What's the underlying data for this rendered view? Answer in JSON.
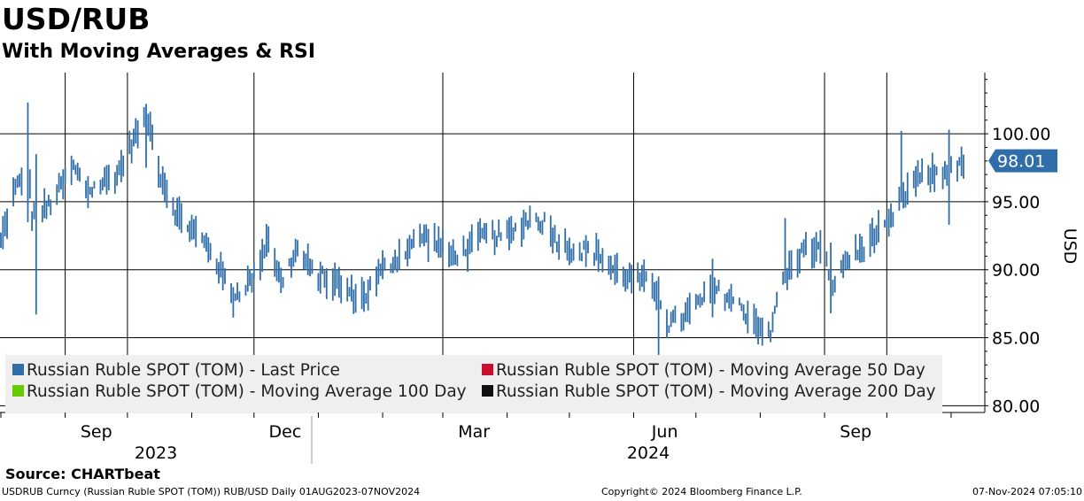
{
  "header": {
    "title": "USD/RUB",
    "subtitle": "With Moving Averages & RSI"
  },
  "footer": {
    "source": "Source: CHARTbeat",
    "left": "USDRUB Curncy (Russian Ruble SPOT (TOM)) RUB/USD  Daily 01AUG2023-07NOV2024",
    "middle": "Copyright© 2024 Bloomberg Finance L.P.",
    "right": "07-Nov-2024 07:05:10"
  },
  "chart_data": {
    "type": "bar",
    "ylabel": "USD",
    "y_tick_labels": [
      "100.00",
      "95.00",
      "90.00",
      "85.00",
      "80.00"
    ],
    "y_ticks": [
      100,
      95,
      90,
      85,
      80
    ],
    "ylim": [
      79.5,
      104.5
    ],
    "x_tick_labels": [
      "Sep",
      "Dec",
      "Mar",
      "Jun",
      "Sep"
    ],
    "x_year_labels": [
      "2023",
      "2024"
    ],
    "grid": true,
    "legend_position": "bottom",
    "last_value_label": "98.01",
    "colors": {
      "last_price": "#2f6ea8",
      "ma50": "#c8102e",
      "ma100": "#66cc00",
      "ma200": "#111111",
      "grid": "#000000",
      "legend_bg": "#efefef"
    },
    "series": [
      {
        "name": "Russian Ruble SPOT (TOM) - Last Price",
        "color": "#2f6ea8"
      },
      {
        "name": "Russian Ruble SPOT (TOM) - Moving Average 50 Day",
        "color": "#c8102e"
      },
      {
        "name": "Russian Ruble SPOT (TOM) - Moving Average 100 Day",
        "color": "#66cc00"
      },
      {
        "name": "Russian Ruble SPOT (TOM) - Moving Average 200 Day",
        "color": "#111111"
      }
    ],
    "price_path": [
      [
        "2023-08-01",
        92.0
      ],
      [
        "2023-08-07",
        95.5
      ],
      [
        "2023-08-14",
        97.8
      ],
      [
        "2023-08-16",
        94.0
      ],
      [
        "2023-08-23",
        94.5
      ],
      [
        "2023-09-05",
        97.5
      ],
      [
        "2023-09-12",
        95.8
      ],
      [
        "2023-09-26",
        97.0
      ],
      [
        "2023-10-06",
        100.2
      ],
      [
        "2023-10-11",
        101.0
      ],
      [
        "2023-10-17",
        97.0
      ],
      [
        "2023-10-25",
        94.0
      ],
      [
        "2023-11-02",
        92.8
      ],
      [
        "2023-11-10",
        91.5
      ],
      [
        "2023-11-17",
        89.2
      ],
      [
        "2023-11-21",
        88.0
      ],
      [
        "2023-12-01",
        89.5
      ],
      [
        "2023-12-08",
        92.5
      ],
      [
        "2023-12-14",
        89.0
      ],
      [
        "2023-12-22",
        91.5
      ],
      [
        "2023-12-29",
        89.8
      ],
      [
        "2024-01-10",
        89.0
      ],
      [
        "2024-01-17",
        88.2
      ],
      [
        "2024-01-23",
        88.0
      ],
      [
        "2024-02-01",
        90.0
      ],
      [
        "2024-02-09",
        91.0
      ],
      [
        "2024-02-20",
        92.5
      ],
      [
        "2024-02-27",
        92.0
      ],
      [
        "2024-03-05",
        91.0
      ],
      [
        "2024-03-13",
        91.5
      ],
      [
        "2024-03-20",
        92.5
      ],
      [
        "2024-04-02",
        92.5
      ],
      [
        "2024-04-12",
        93.8
      ],
      [
        "2024-04-19",
        93.5
      ],
      [
        "2024-04-26",
        92.0
      ],
      [
        "2024-05-03",
        91.5
      ],
      [
        "2024-05-15",
        91.2
      ],
      [
        "2024-05-22",
        90.0
      ],
      [
        "2024-05-29",
        89.5
      ],
      [
        "2024-06-05",
        89.2
      ],
      [
        "2024-06-12",
        88.5
      ],
      [
        "2024-06-18",
        86.0
      ],
      [
        "2024-06-25",
        86.5
      ],
      [
        "2024-07-02",
        87.5
      ],
      [
        "2024-07-10",
        88.5
      ],
      [
        "2024-07-17",
        88.0
      ],
      [
        "2024-07-24",
        87.0
      ],
      [
        "2024-07-31",
        86.0
      ],
      [
        "2024-08-06",
        85.0
      ],
      [
        "2024-08-09",
        88.0
      ],
      [
        "2024-08-15",
        90.0
      ],
      [
        "2024-08-22",
        91.5
      ],
      [
        "2024-08-29",
        91.5
      ],
      [
        "2024-09-02",
        90.5
      ],
      [
        "2024-09-06",
        88.5
      ],
      [
        "2024-09-10",
        90.5
      ],
      [
        "2024-09-19",
        91.5
      ],
      [
        "2024-09-25",
        92.5
      ],
      [
        "2024-10-01",
        93.0
      ],
      [
        "2024-10-08",
        95.0
      ],
      [
        "2024-10-14",
        96.5
      ],
      [
        "2024-10-21",
        97.0
      ],
      [
        "2024-10-28",
        97.0
      ],
      [
        "2024-11-01",
        97.8
      ],
      [
        "2024-11-05",
        97.5
      ],
      [
        "2024-11-07",
        98.01
      ]
    ],
    "spikes": [
      {
        "date": "2023-08-14",
        "high": 102.3,
        "low": 93.5
      },
      {
        "date": "2023-08-18",
        "high": 98.5,
        "low": 86.7
      },
      {
        "date": "2023-10-10",
        "high": 102.2,
        "low": 97.5
      },
      {
        "date": "2024-06-13",
        "high": 89.5,
        "low": 83.0
      },
      {
        "date": "2024-07-09",
        "high": 90.8,
        "low": 86.5
      },
      {
        "date": "2024-08-13",
        "high": 93.8,
        "low": 89.0
      },
      {
        "date": "2024-09-04",
        "high": 92.0,
        "low": 86.8
      },
      {
        "date": "2024-10-08",
        "high": 100.2,
        "low": 95.0
      },
      {
        "date": "2024-10-31",
        "high": 100.3,
        "low": 93.3
      }
    ]
  }
}
